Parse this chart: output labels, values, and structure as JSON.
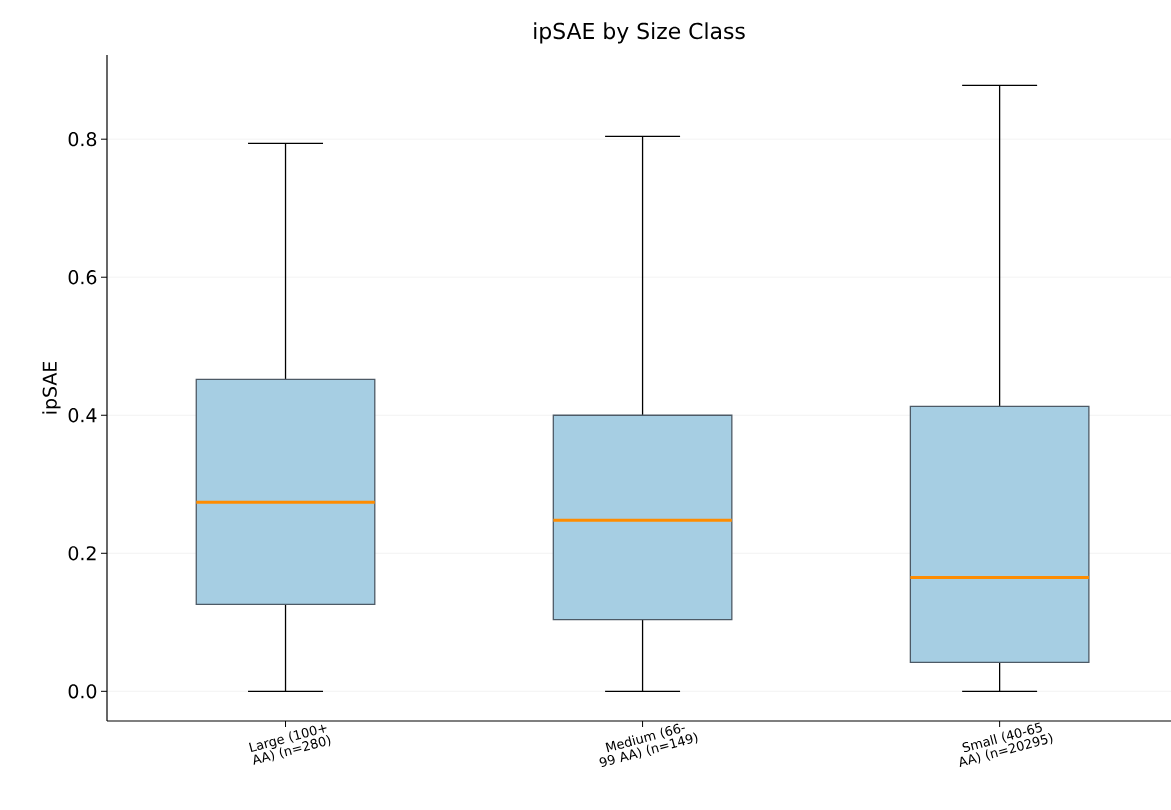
{
  "chart_data": {
    "type": "box",
    "title": "ipSAE by Size Class",
    "ylabel": "ipSAE",
    "categories": [
      "Large (100+ AA) (n=280)",
      "Medium (66-99 AA) (n=149)",
      "Small (40-65 AA) (n=20295)"
    ],
    "series": [
      {
        "color": "#a6cee3",
        "boxes": [
          {
            "low": 0,
            "q1": 0.126,
            "median": 0.274,
            "q3": 0.452,
            "high": 0.794
          },
          {
            "low": 0,
            "q1": 0.104,
            "median": 0.248,
            "q3": 0.4,
            "high": 0.804
          },
          {
            "low": 0,
            "q1": 0.042,
            "median": 0.165,
            "q3": 0.413,
            "high": 0.878
          }
        ]
      }
    ],
    "ylim": [
      -0.043,
      0.922
    ],
    "yticks": [
      {
        "value": 0,
        "label": "0.0"
      },
      0.2,
      0.4,
      0.6,
      0.8
    ],
    "grid": "y"
  }
}
